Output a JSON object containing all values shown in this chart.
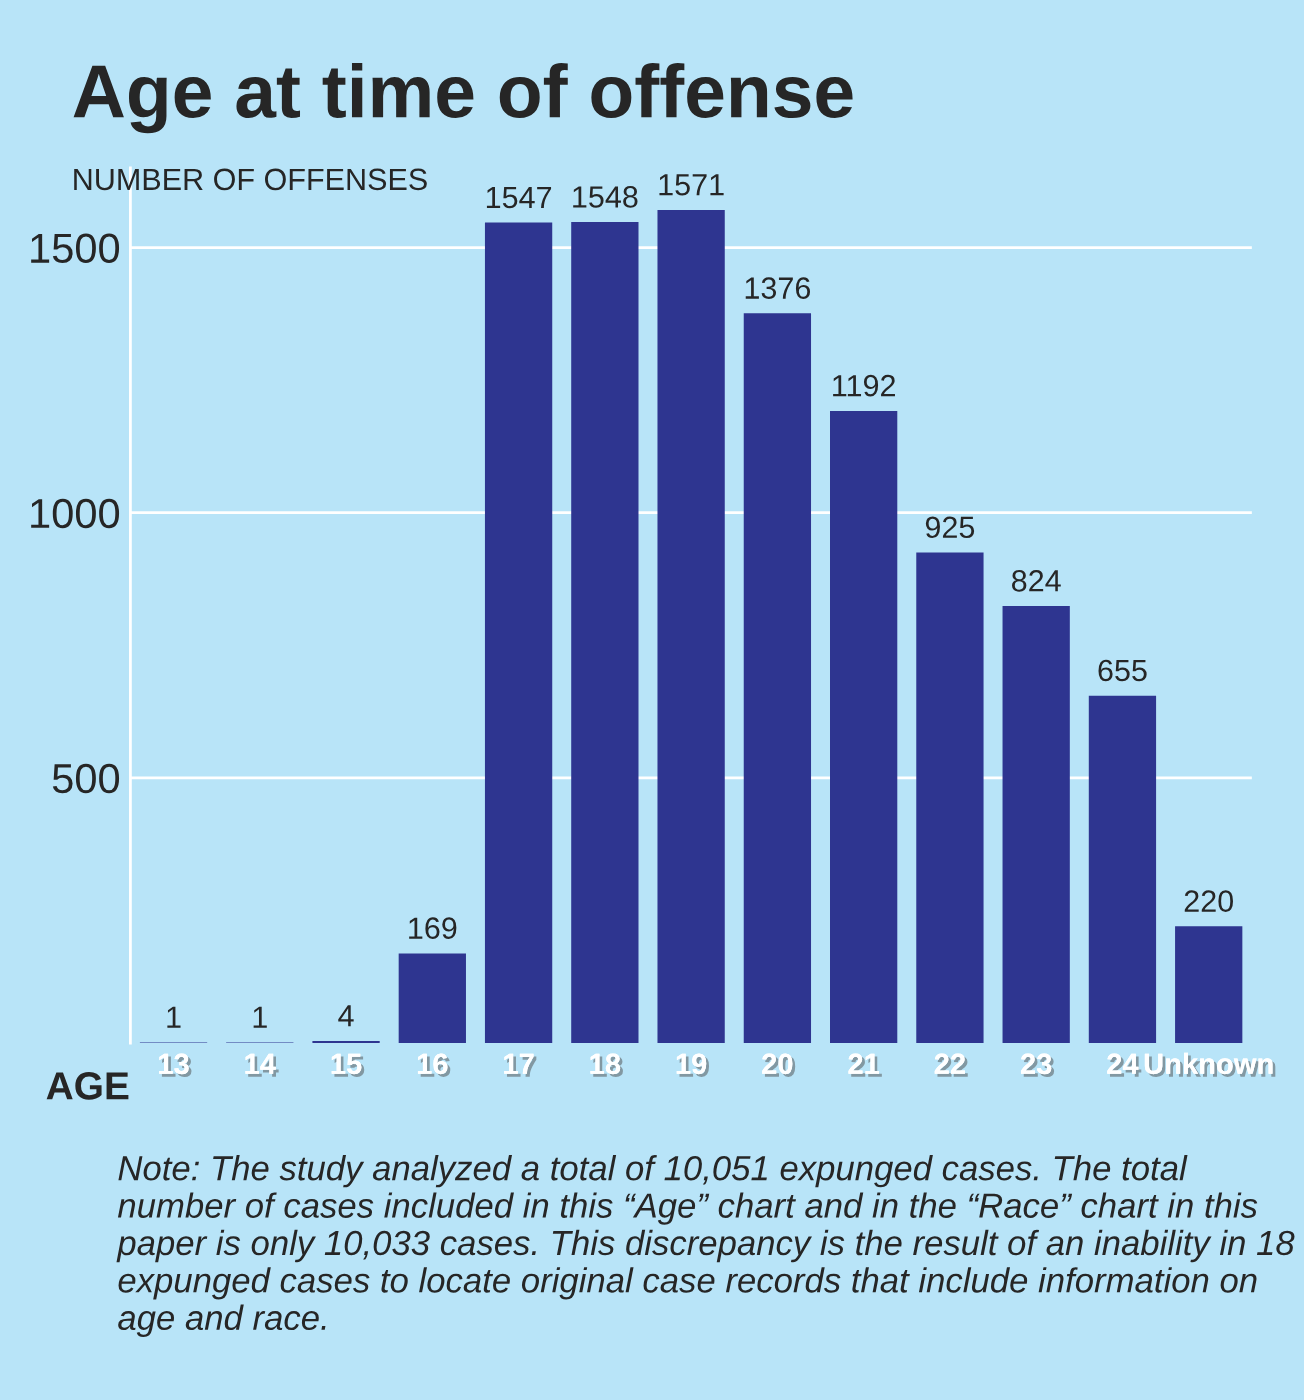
{
  "chart_data": {
    "type": "bar",
    "title": "Age at time of offense",
    "ylabel": "NUMBER OF OFFENSES",
    "xlabel": "AGE",
    "categories": [
      "13",
      "14",
      "15",
      "16",
      "17",
      "18",
      "19",
      "20",
      "21",
      "22",
      "23",
      "24",
      "Unknown"
    ],
    "values": [
      1,
      1,
      4,
      169,
      1547,
      1548,
      1571,
      1376,
      1192,
      925,
      824,
      655,
      220
    ],
    "color": "#2e3590",
    "ylim": [
      0,
      1650
    ],
    "yticks": [
      500,
      1000,
      1500
    ],
    "grid": "y",
    "data_labels": true,
    "annotations": [
      "Note: The study analyzed a total of 10,051 expunged cases. The total number of cases included in this “Age” chart and in the “Race” chart in this paper is only 10,033 cases. This discrepancy is the result of an inability in 18 expunged cases to locate original case records that include information on age and race."
    ]
  }
}
